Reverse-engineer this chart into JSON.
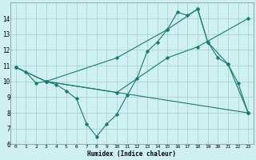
{
  "xlabel": "Humidex (Indice chaleur)",
  "ylabel": "",
  "bg_color": "#cff0f0",
  "line_color": "#1a7a6e",
  "grid_color": "#aad4d4",
  "xlim": [
    -0.5,
    23.5
  ],
  "ylim": [
    6,
    15
  ],
  "yticks": [
    6,
    7,
    8,
    9,
    10,
    11,
    12,
    13,
    14
  ],
  "xticks": [
    0,
    1,
    2,
    3,
    4,
    5,
    6,
    7,
    8,
    9,
    10,
    11,
    12,
    13,
    14,
    15,
    16,
    17,
    18,
    19,
    20,
    21,
    22,
    23
  ],
  "series": [
    {
      "x": [
        0,
        1,
        2,
        3,
        4,
        5,
        6,
        7,
        8,
        9,
        10,
        11,
        12,
        13,
        14,
        15,
        16,
        17,
        18,
        19,
        20,
        21,
        22,
        23
      ],
      "y": [
        10.9,
        10.6,
        9.9,
        10.0,
        9.8,
        9.4,
        8.9,
        7.3,
        6.5,
        7.3,
        7.9,
        9.1,
        10.2,
        11.9,
        12.5,
        13.3,
        14.4,
        14.2,
        14.6,
        12.5,
        11.5,
        11.1,
        9.9,
        8.0
      ]
    },
    {
      "x": [
        0,
        3,
        23
      ],
      "y": [
        10.9,
        10.0,
        8.0
      ]
    },
    {
      "x": [
        0,
        3,
        10,
        15,
        18,
        23
      ],
      "y": [
        10.9,
        10.0,
        9.3,
        11.5,
        12.2,
        14.0
      ]
    },
    {
      "x": [
        3,
        10,
        15,
        18,
        19,
        21,
        23
      ],
      "y": [
        10.0,
        11.5,
        13.3,
        14.6,
        12.5,
        11.1,
        8.0
      ]
    }
  ]
}
